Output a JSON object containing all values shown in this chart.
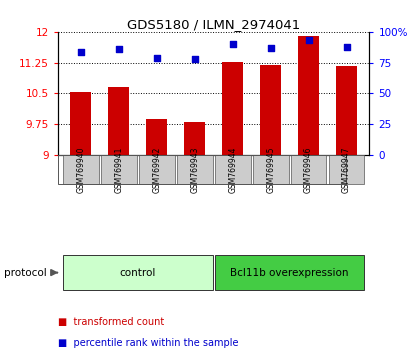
{
  "title": "GDS5180 / ILMN_2974041",
  "samples": [
    "GSM769940",
    "GSM769941",
    "GSM769942",
    "GSM769943",
    "GSM769944",
    "GSM769945",
    "GSM769946",
    "GSM769947"
  ],
  "transformed_counts": [
    10.53,
    10.65,
    9.87,
    9.8,
    11.27,
    11.18,
    11.9,
    11.17
  ],
  "percentile_ranks": [
    84,
    86,
    79,
    78,
    90,
    87,
    93,
    88
  ],
  "ylim_left": [
    9,
    12
  ],
  "yticks_left": [
    9,
    9.75,
    10.5,
    11.25,
    12
  ],
  "ytick_labels_left": [
    "9",
    "9.75",
    "10.5",
    "11.25",
    "12"
  ],
  "ylim_right": [
    0,
    100
  ],
  "yticks_right": [
    0,
    25,
    50,
    75,
    100
  ],
  "ytick_labels_right": [
    "0",
    "25",
    "50",
    "75",
    "100%"
  ],
  "bar_color": "#cc0000",
  "dot_color": "#0000cc",
  "bar_width": 0.55,
  "groups": [
    {
      "label": "control",
      "samples": [
        0,
        1,
        2,
        3
      ],
      "color": "#ccffcc"
    },
    {
      "label": "Bcl11b overexpression",
      "samples": [
        4,
        5,
        6,
        7
      ],
      "color": "#44cc44"
    }
  ],
  "protocol_label": "protocol",
  "legend_bar_label": "transformed count",
  "legend_dot_label": "percentile rank within the sample",
  "background_color": "#ffffff"
}
